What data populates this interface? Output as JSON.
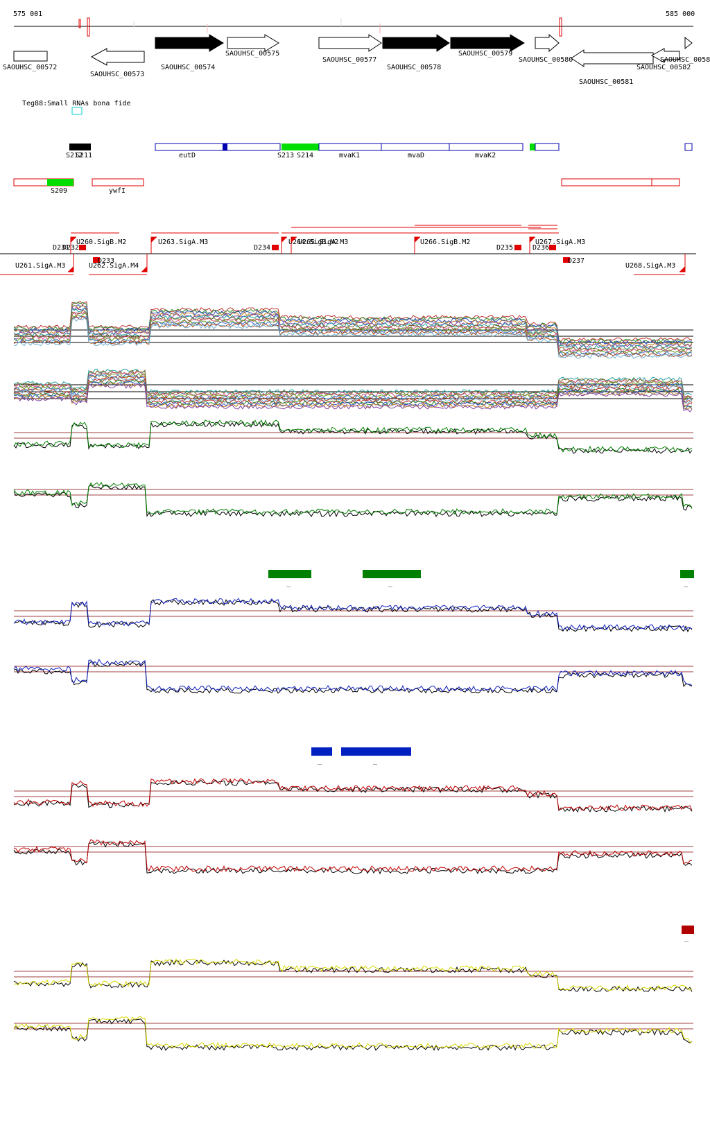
{
  "ruler": {
    "start_label": "575 001",
    "end_label": "585 000"
  },
  "genes": [
    {
      "label": "SAOUHSC_00572",
      "strand": "none",
      "filled": false
    },
    {
      "label": "SAOUHSC_00573",
      "strand": "-",
      "filled": false
    },
    {
      "label": "SAOUHSC_00574",
      "strand": "+",
      "filled": true
    },
    {
      "label": "SAOUHSC_00575",
      "strand": "+",
      "filled": false
    },
    {
      "label": "SAOUHSC_00577",
      "strand": "+",
      "filled": false
    },
    {
      "label": "SAOUHSC_00578",
      "strand": "+",
      "filled": true
    },
    {
      "label": "SAOUHSC_00579",
      "strand": "+",
      "filled": true
    },
    {
      "label": "SAOUHSC_00580",
      "strand": "+",
      "filled": false
    },
    {
      "label": "SAOUHSC_00581",
      "strand": "-",
      "filled": false
    },
    {
      "label": "SAOUHSC_00582",
      "strand": "-",
      "filled": false
    },
    {
      "label": "SAOUHSC_0058",
      "strand": "+",
      "filled": false
    }
  ],
  "small_rna_track": {
    "title": "Teg88:Small RNAs bona fide"
  },
  "blue_features": [
    {
      "label": "S212"
    },
    {
      "label": "S211"
    },
    {
      "label": "eutD"
    },
    {
      "label": "S213"
    },
    {
      "label": "S214"
    },
    {
      "label": "mvaK1"
    },
    {
      "label": "mvaD"
    },
    {
      "label": "mvaK2"
    }
  ],
  "red_features": [
    {
      "label": "S209"
    },
    {
      "label": "ywfI"
    }
  ],
  "promoters": [
    {
      "label": "D231"
    },
    {
      "label": "D232"
    },
    {
      "label": "U260.SigB.M2"
    },
    {
      "label": "D233"
    },
    {
      "label": "U263.SigA.M3"
    },
    {
      "label": "D234"
    },
    {
      "label": "U264.SigB.M2"
    },
    {
      "label": "U265.SigA.M3"
    },
    {
      "label": "U266.SigB.M2"
    },
    {
      "label": "D235"
    },
    {
      "label": "D236"
    },
    {
      "label": "U267.SigA.M3"
    },
    {
      "label": "D237"
    },
    {
      "label": "U261.SigA.M3"
    },
    {
      "label": "U262.SigA.M4"
    },
    {
      "label": "U268.SigA.M3"
    }
  ],
  "expression_panels": [
    {
      "color": "#008000",
      "marker_label": "_"
    },
    {
      "color": "#1020c0",
      "marker_label": "_"
    },
    {
      "color": "#c00000",
      "marker_label": "_"
    },
    {
      "color": "#d8d800",
      "marker_label": "_"
    }
  ],
  "colors": {
    "gene_outline": "#000000",
    "feature_blue": "#0000b0",
    "feature_red": "#e00000",
    "feature_green": "#00dd00",
    "threshold": "#a04040",
    "green_block": "#008000",
    "blue_block": "#0020c0",
    "red_block": "#b00000"
  }
}
